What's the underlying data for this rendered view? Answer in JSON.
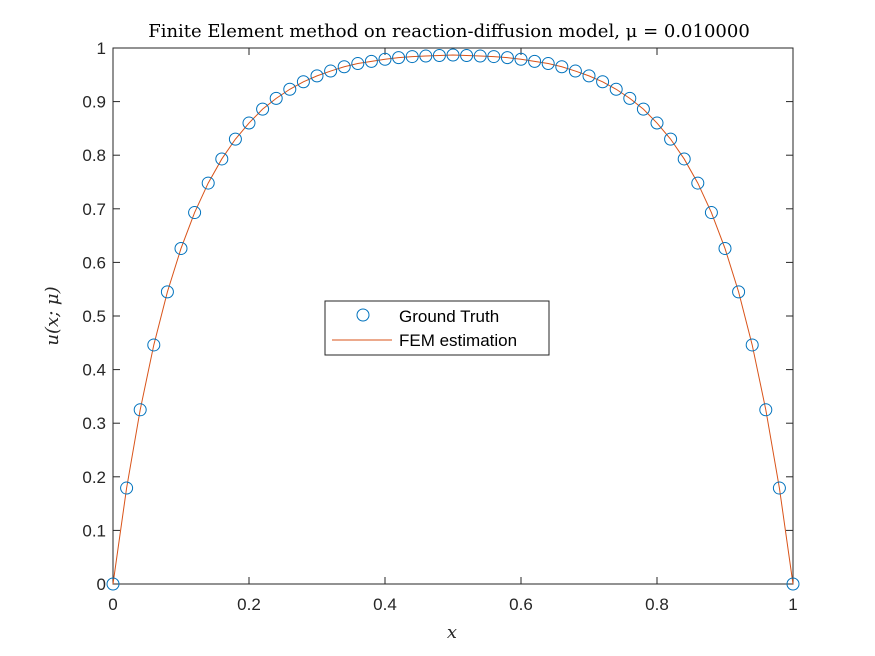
{
  "chart_data": {
    "type": "line",
    "title": "Finite Element method on reaction-diffusion model, μ = 0.010000",
    "xlabel": "x",
    "ylabel": "u(x; μ)",
    "xlim": [
      0,
      1
    ],
    "ylim": [
      0,
      1
    ],
    "xticks": [
      0,
      0.2,
      0.4,
      0.6,
      0.8,
      1
    ],
    "xtick_labels": [
      "0",
      "0.2",
      "0.4",
      "0.6",
      "0.8",
      "1"
    ],
    "yticks": [
      0,
      0.1,
      0.2,
      0.3,
      0.4,
      0.5,
      0.6,
      0.7,
      0.8,
      0.9,
      1
    ],
    "ytick_labels": [
      "0",
      "0.1",
      "0.2",
      "0.3",
      "0.4",
      "0.5",
      "0.6",
      "0.7",
      "0.8",
      "0.9",
      "1"
    ],
    "grid": false,
    "legend": "center",
    "series": [
      {
        "name": "Ground Truth",
        "style": "circle-markers",
        "color": "#0072BD",
        "x": [
          0,
          0.02,
          0.04,
          0.06,
          0.08,
          0.1,
          0.12,
          0.14,
          0.16,
          0.18,
          0.2,
          0.22,
          0.24,
          0.26,
          0.28,
          0.3,
          0.32,
          0.34,
          0.36,
          0.38,
          0.4,
          0.42,
          0.44,
          0.46,
          0.48,
          0.5,
          0.52,
          0.54,
          0.56,
          0.58,
          0.6,
          0.62,
          0.64,
          0.66,
          0.68,
          0.7,
          0.72,
          0.74,
          0.76,
          0.78,
          0.8,
          0.82,
          0.84,
          0.86,
          0.88,
          0.9,
          0.92,
          0.94,
          0.96,
          0.98,
          1
        ],
        "y": [
          0,
          0.179,
          0.325,
          0.446,
          0.545,
          0.626,
          0.693,
          0.748,
          0.793,
          0.83,
          0.86,
          0.886,
          0.906,
          0.923,
          0.937,
          0.948,
          0.957,
          0.965,
          0.971,
          0.975,
          0.979,
          0.982,
          0.984,
          0.985,
          0.986,
          0.987,
          0.986,
          0.985,
          0.984,
          0.982,
          0.979,
          0.975,
          0.971,
          0.965,
          0.957,
          0.948,
          0.937,
          0.923,
          0.906,
          0.886,
          0.86,
          0.83,
          0.793,
          0.748,
          0.693,
          0.626,
          0.545,
          0.446,
          0.325,
          0.179,
          0
        ]
      },
      {
        "name": "FEM estimation",
        "style": "line",
        "color": "#D95319",
        "x": [
          0,
          0.02,
          0.04,
          0.06,
          0.08,
          0.1,
          0.12,
          0.14,
          0.16,
          0.18,
          0.2,
          0.22,
          0.24,
          0.26,
          0.28,
          0.3,
          0.32,
          0.34,
          0.36,
          0.38,
          0.4,
          0.42,
          0.44,
          0.46,
          0.48,
          0.5,
          0.52,
          0.54,
          0.56,
          0.58,
          0.6,
          0.62,
          0.64,
          0.66,
          0.68,
          0.7,
          0.72,
          0.74,
          0.76,
          0.78,
          0.8,
          0.82,
          0.84,
          0.86,
          0.88,
          0.9,
          0.92,
          0.94,
          0.96,
          0.98,
          1
        ],
        "y": [
          0,
          0.179,
          0.325,
          0.446,
          0.545,
          0.626,
          0.693,
          0.748,
          0.793,
          0.83,
          0.86,
          0.886,
          0.906,
          0.923,
          0.937,
          0.948,
          0.957,
          0.965,
          0.971,
          0.975,
          0.979,
          0.982,
          0.984,
          0.985,
          0.986,
          0.987,
          0.986,
          0.985,
          0.984,
          0.982,
          0.979,
          0.975,
          0.971,
          0.965,
          0.957,
          0.948,
          0.937,
          0.923,
          0.906,
          0.886,
          0.86,
          0.83,
          0.793,
          0.748,
          0.693,
          0.626,
          0.545,
          0.446,
          0.325,
          0.179,
          0
        ]
      }
    ]
  }
}
